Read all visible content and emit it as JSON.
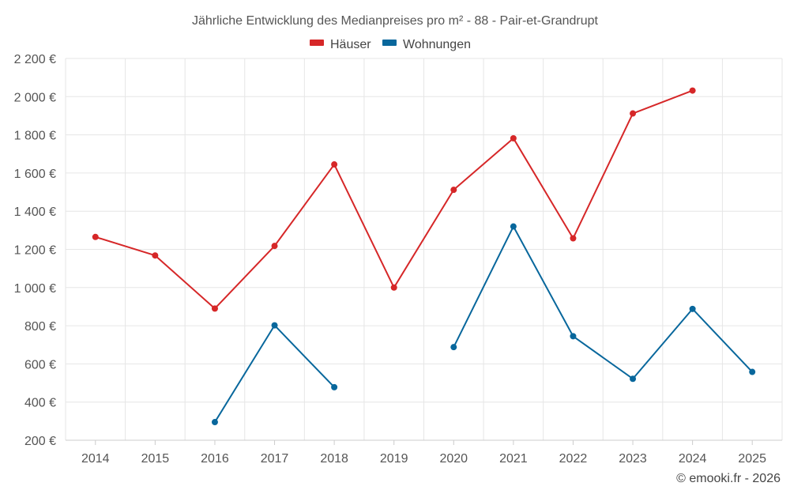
{
  "chart_data": {
    "type": "line",
    "title": "Jährliche Entwicklung des Medianpreises pro m² - 88 - Pair-et-Grandrupt",
    "xlabel": "",
    "ylabel": "",
    "categories": [
      "2014",
      "2015",
      "2016",
      "2017",
      "2018",
      "2019",
      "2020",
      "2021",
      "2022",
      "2023",
      "2024",
      "2025"
    ],
    "ylim": [
      200,
      2200
    ],
    "yticks": [
      200,
      400,
      600,
      800,
      1000,
      1200,
      1400,
      1600,
      1800,
      2000,
      2200
    ],
    "ytick_labels": [
      "200 €",
      "400 €",
      "600 €",
      "800 €",
      "1 000 €",
      "1 200 €",
      "1 400 €",
      "1 600 €",
      "1 800 €",
      "2 000 €",
      "2 200 €"
    ],
    "grid": true,
    "legend_position": "top-center",
    "series": [
      {
        "name": "Häuser",
        "color": "#d62728",
        "values": [
          1265,
          1168,
          890,
          1218,
          1645,
          1000,
          1512,
          1782,
          1258,
          1912,
          2032,
          null
        ]
      },
      {
        "name": "Wohnungen",
        "color": "#08679c",
        "values": [
          null,
          null,
          295,
          802,
          478,
          null,
          688,
          1320,
          745,
          522,
          888,
          558
        ]
      }
    ],
    "credit": "© emooki.fr - 2026"
  }
}
